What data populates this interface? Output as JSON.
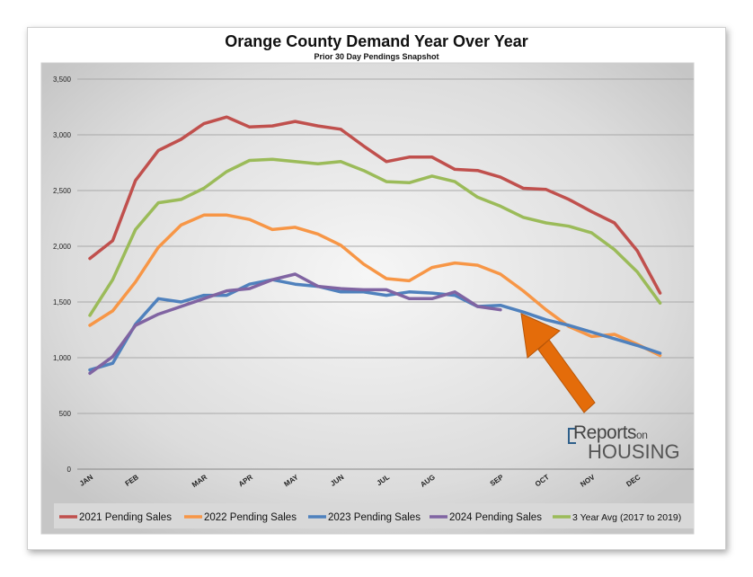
{
  "chart_data": {
    "type": "line",
    "title": "Orange County Demand Year Over Year",
    "subtitle": "Prior 30 Day Pendings Snapshot",
    "ylim": [
      0,
      3500
    ],
    "yticks": [
      "0",
      "500",
      "1,000",
      "1,500",
      "2,000",
      "2,500",
      "3,000",
      "3,500"
    ],
    "x_points": 27,
    "x_ticks": [
      {
        "index": 0,
        "label": "JAN"
      },
      {
        "index": 2,
        "label": "FEB"
      },
      {
        "index": 5,
        "label": "MAR"
      },
      {
        "index": 7,
        "label": "APR"
      },
      {
        "index": 9,
        "label": "MAY"
      },
      {
        "index": 11,
        "label": "JUN"
      },
      {
        "index": 13,
        "label": "JUL"
      },
      {
        "index": 15,
        "label": "AUG"
      },
      {
        "index": 18,
        "label": "SEP"
      },
      {
        "index": 20,
        "label": "OCT"
      },
      {
        "index": 22,
        "label": "NOV"
      },
      {
        "index": 24,
        "label": "DEC"
      }
    ],
    "series": [
      {
        "name": "2021 Pending Sales",
        "color": "#c0504d",
        "values": [
          1890,
          2050,
          2590,
          2860,
          2960,
          3100,
          3160,
          3070,
          3080,
          3120,
          3080,
          3050,
          2900,
          2760,
          2800,
          2800,
          2690,
          2680,
          2620,
          2520,
          2510,
          2420,
          2310,
          2210,
          1960,
          1580
        ]
      },
      {
        "name": "2022 Pending Sales",
        "color": "#f79646",
        "values": [
          1290,
          1420,
          1680,
          1990,
          2190,
          2280,
          2280,
          2240,
          2150,
          2170,
          2110,
          2010,
          1840,
          1710,
          1690,
          1810,
          1850,
          1830,
          1750,
          1600,
          1430,
          1280,
          1190,
          1210,
          1120,
          1020
        ]
      },
      {
        "name": "2023 Pending Sales",
        "color": "#4f81bd",
        "values": [
          890,
          950,
          1300,
          1530,
          1500,
          1560,
          1560,
          1660,
          1700,
          1660,
          1640,
          1590,
          1590,
          1560,
          1590,
          1580,
          1560,
          1460,
          1470,
          1410,
          1340,
          1290,
          1230,
          1170,
          1110,
          1040
        ]
      },
      {
        "name": "2024 Pending Sales",
        "color": "#8064a2",
        "values": [
          860,
          1010,
          1290,
          1390,
          1460,
          1530,
          1600,
          1620,
          1700,
          1750,
          1640,
          1620,
          1610,
          1610,
          1530,
          1530,
          1590,
          1460,
          1430
        ]
      },
      {
        "name": "3 Year Avg (2017 to 2019)",
        "color": "#9bbb59",
        "values": [
          1380,
          1700,
          2150,
          2390,
          2420,
          2520,
          2670,
          2770,
          2780,
          2760,
          2740,
          2760,
          2680,
          2580,
          2570,
          2630,
          2580,
          2440,
          2360,
          2260,
          2210,
          2180,
          2120,
          1970,
          1770,
          1490
        ]
      }
    ],
    "legend_position": "bottom",
    "grid": true
  },
  "watermark": {
    "line1": "Reports",
    "line1_small": "on",
    "line2": "HOUSING"
  }
}
